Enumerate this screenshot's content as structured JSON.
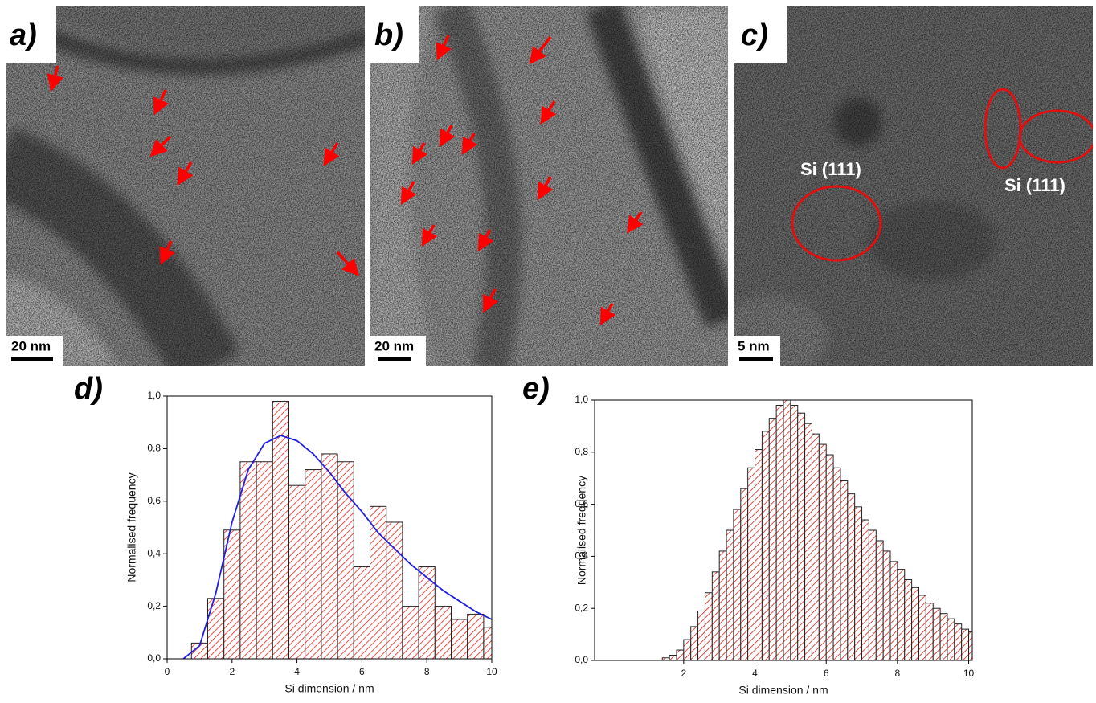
{
  "panels": [
    {
      "label": "a)",
      "scale_bar": "20 nm"
    },
    {
      "label": "b)",
      "scale_bar": "20 nm"
    },
    {
      "label": "c)",
      "scale_bar": "5 nm",
      "annotations": [
        "Si (111)",
        "Si (111)"
      ]
    }
  ],
  "chart_data": [
    {
      "type": "histogram",
      "label": "d)",
      "xlabel": "Si dimension / nm",
      "ylabel": "Normalised frequency",
      "bins": [
        0.75,
        1.25,
        1.75,
        2.25,
        2.75,
        3.25,
        3.75,
        4.25,
        4.75,
        5.25,
        5.75,
        6.25,
        6.75,
        7.25,
        7.75,
        8.25,
        8.75,
        9.25,
        9.75,
        10.25
      ],
      "values": [
        0.06,
        0.23,
        0.49,
        0.75,
        0.75,
        0.98,
        0.66,
        0.72,
        0.78,
        0.75,
        0.35,
        0.58,
        0.52,
        0.2,
        0.35,
        0.2,
        0.15,
        0.17,
        0.12
      ],
      "color": "#e8231b",
      "fit": {
        "color": "#2020e0",
        "x": [
          0.5,
          1,
          1.5,
          2,
          2.5,
          3,
          3.5,
          4,
          4.5,
          5,
          5.5,
          6,
          6.5,
          7,
          7.5,
          8,
          8.5,
          9,
          9.5,
          10
        ],
        "values": [
          0,
          0.05,
          0.25,
          0.52,
          0.72,
          0.82,
          0.85,
          0.83,
          0.78,
          0.71,
          0.63,
          0.56,
          0.48,
          0.42,
          0.36,
          0.31,
          0.26,
          0.22,
          0.18,
          0.15
        ]
      },
      "xlim": [
        0,
        10
      ],
      "ylim": [
        0,
        1
      ],
      "xticks": [
        0,
        2,
        4,
        6,
        8,
        10
      ],
      "yticks": [
        {
          "value": 0,
          "label": "0,0"
        },
        {
          "value": 0.2,
          "label": "0,2"
        },
        {
          "value": 0.4,
          "label": "0,4"
        },
        {
          "value": 0.6,
          "label": "0,6"
        },
        {
          "value": 0.8,
          "label": "0,8"
        },
        {
          "value": 1,
          "label": "1,0"
        }
      ]
    },
    {
      "type": "histogram",
      "label": "e)",
      "xlabel": "Si dimension / nm",
      "ylabel": "Normalised frequency",
      "bins": [
        1.4,
        1.6,
        1.8,
        2.0,
        2.2,
        2.4,
        2.6,
        2.8,
        3.0,
        3.2,
        3.4,
        3.6,
        3.8,
        4.0,
        4.2,
        4.4,
        4.6,
        4.8,
        5.0,
        5.2,
        5.4,
        5.6,
        5.8,
        6.0,
        6.2,
        6.4,
        6.6,
        6.8,
        7.0,
        7.2,
        7.4,
        7.6,
        7.8,
        8.0,
        8.2,
        8.4,
        8.6,
        8.8,
        9.0,
        9.2,
        9.4,
        9.6,
        9.8,
        10.0,
        10.2
      ],
      "values": [
        0.01,
        0.02,
        0.04,
        0.08,
        0.13,
        0.19,
        0.26,
        0.34,
        0.42,
        0.5,
        0.58,
        0.66,
        0.74,
        0.81,
        0.88,
        0.93,
        0.98,
        1.0,
        0.98,
        0.95,
        0.91,
        0.87,
        0.83,
        0.79,
        0.74,
        0.69,
        0.64,
        0.59,
        0.54,
        0.5,
        0.46,
        0.42,
        0.38,
        0.35,
        0.31,
        0.28,
        0.25,
        0.22,
        0.2,
        0.18,
        0.16,
        0.14,
        0.12,
        0.11
      ],
      "color": "#d4211b",
      "xlim": [
        -0.5,
        10.1
      ],
      "ylim": [
        0,
        1
      ],
      "xticks": [
        2,
        4,
        6,
        8,
        10
      ],
      "yticks": [
        {
          "value": 0,
          "label": "0,0"
        },
        {
          "value": 0.2,
          "label": "0,2"
        },
        {
          "value": 0.4,
          "label": "0,4"
        },
        {
          "value": 0.6,
          "label": "0,6"
        },
        {
          "value": 0.8,
          "label": "0,8"
        },
        {
          "value": 1,
          "label": "1,0"
        }
      ]
    }
  ]
}
